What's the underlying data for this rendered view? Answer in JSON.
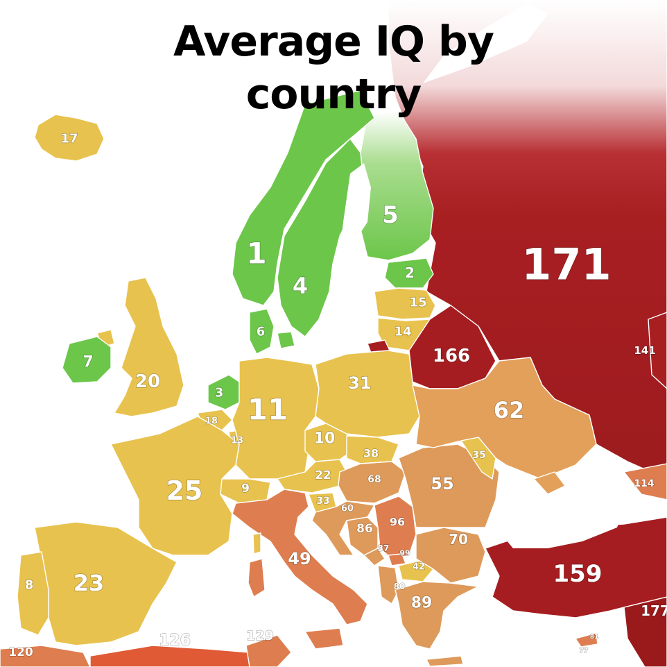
{
  "title": {
    "line1": "Average IQ by",
    "line2": "country"
  },
  "colors": {
    "green": "#6cc64a",
    "yellow": "#e8c24e",
    "orange": "#e3a05a",
    "deep_orange": "#de7d4f",
    "red": "#a81f22",
    "dark_red": "#9a1a1c"
  },
  "countries": [
    {
      "key": "iceland",
      "rank": "17"
    },
    {
      "key": "norway",
      "rank": "1"
    },
    {
      "key": "sweden",
      "rank": "4"
    },
    {
      "key": "finland",
      "rank": "5"
    },
    {
      "key": "estonia",
      "rank": "2"
    },
    {
      "key": "latvia",
      "rank": "15"
    },
    {
      "key": "lithuania",
      "rank": "14"
    },
    {
      "key": "denmark",
      "rank": "6"
    },
    {
      "key": "ireland",
      "rank": "7"
    },
    {
      "key": "uk",
      "rank": "20"
    },
    {
      "key": "netherlands",
      "rank": "3"
    },
    {
      "key": "belgium",
      "rank": "18"
    },
    {
      "key": "luxembourg",
      "rank": "13"
    },
    {
      "key": "germany",
      "rank": "11"
    },
    {
      "key": "poland",
      "rank": "31"
    },
    {
      "key": "czechia",
      "rank": "10"
    },
    {
      "key": "slovakia",
      "rank": "38"
    },
    {
      "key": "austria",
      "rank": "22"
    },
    {
      "key": "switzerland",
      "rank": "9"
    },
    {
      "key": "france",
      "rank": "25"
    },
    {
      "key": "spain",
      "rank": "23"
    },
    {
      "key": "portugal",
      "rank": "8"
    },
    {
      "key": "italy",
      "rank": "49"
    },
    {
      "key": "slovenia",
      "rank": "33"
    },
    {
      "key": "croatia",
      "rank": "60"
    },
    {
      "key": "hungary",
      "rank": "68"
    },
    {
      "key": "romania",
      "rank": "55"
    },
    {
      "key": "moldova",
      "rank": "35"
    },
    {
      "key": "ukraine",
      "rank": "62"
    },
    {
      "key": "belarus",
      "rank": "166"
    },
    {
      "key": "russia",
      "rank": "171"
    },
    {
      "key": "bosnia",
      "rank": "86"
    },
    {
      "key": "serbia",
      "rank": "96"
    },
    {
      "key": "montenegro",
      "rank": "37"
    },
    {
      "key": "kosovo",
      "rank": "99"
    },
    {
      "key": "north_macedonia",
      "rank": "42"
    },
    {
      "key": "albania",
      "rank": "80"
    },
    {
      "key": "bulgaria",
      "rank": "70"
    },
    {
      "key": "greece",
      "rank": "89"
    },
    {
      "key": "turkey",
      "rank": "159"
    },
    {
      "key": "kazakhstan",
      "rank": "141"
    },
    {
      "key": "georgia",
      "rank": "114"
    },
    {
      "key": "syria_edge",
      "rank": "177"
    },
    {
      "key": "morocco",
      "rank": "120"
    },
    {
      "key": "algeria",
      "rank": "126"
    },
    {
      "key": "tunisia",
      "rank": "129"
    },
    {
      "key": "cyprus",
      "rank": "81"
    },
    {
      "key": "lebanon",
      "rank": "77"
    }
  ]
}
